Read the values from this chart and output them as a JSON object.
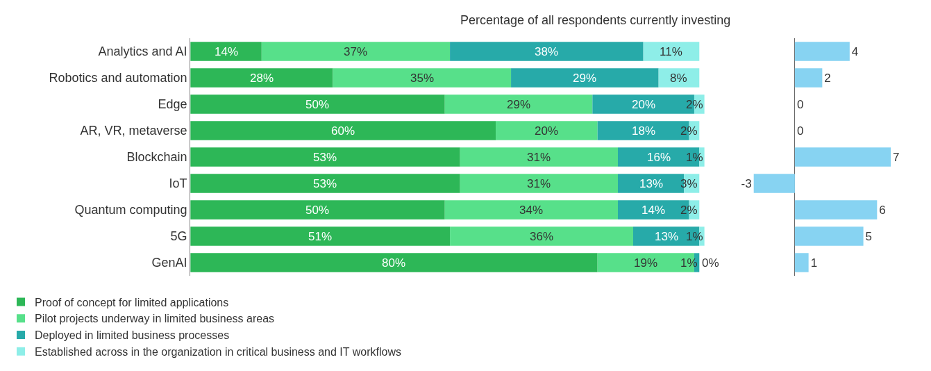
{
  "chart_data": [
    {
      "type": "bar",
      "orientation": "horizontal",
      "stacked": true,
      "title": "Percentage of all respondents currently investing",
      "categories": [
        "Analytics and AI",
        "Robotics and automation",
        "Edge",
        "AR, VR, metaverse",
        "Blockchain",
        "IoT",
        "Quantum computing",
        "5G",
        "GenAI"
      ],
      "legend": "bottom",
      "tick_labels": "y",
      "series": [
        {
          "name": "Proof of concept for limited applications",
          "color": "#2db757",
          "values": [
            14,
            28,
            50,
            60,
            53,
            53,
            50,
            51,
            80
          ],
          "value_labels": [
            "14%",
            "28%",
            "50%",
            "60%",
            "53%",
            "53%",
            "50%",
            "51%",
            "80%"
          ]
        },
        {
          "name": "Pilot projects underway in limited business areas",
          "color": "#57e08a",
          "values": [
            37,
            35,
            29,
            20,
            31,
            31,
            34,
            36,
            19
          ],
          "value_labels": [
            "37%",
            "35%",
            "29%",
            "20%",
            "31%",
            "31%",
            "34%",
            "36%",
            "19%"
          ]
        },
        {
          "name": "Deployed in limited business processes",
          "color": "#27aaa9",
          "values": [
            38,
            29,
            20,
            18,
            16,
            13,
            14,
            13,
            1
          ],
          "value_labels": [
            "38%",
            "29%",
            "20%",
            "18%",
            "16%",
            "13%",
            "14%",
            "13%",
            "1%"
          ]
        },
        {
          "name": "Established across in the organization in critical business and IT workflows",
          "color": "#8eeee8",
          "values": [
            11,
            8,
            2,
            2,
            1,
            3,
            2,
            1,
            0
          ],
          "value_labels": [
            "11%",
            "8%",
            "2%",
            "2%",
            "1%",
            "3%",
            "2%",
            "1%",
            "0%"
          ]
        }
      ]
    },
    {
      "type": "bar",
      "orientation": "horizontal",
      "categories": [
        null,
        null,
        null,
        null,
        null,
        null,
        null,
        null,
        null
      ],
      "tick_labels": false,
      "data_labels": true,
      "series": [
        {
          "color": "#87d3f2",
          "values": [
            4,
            2,
            0,
            0,
            7,
            -3,
            6,
            5,
            1
          ]
        }
      ]
    }
  ]
}
